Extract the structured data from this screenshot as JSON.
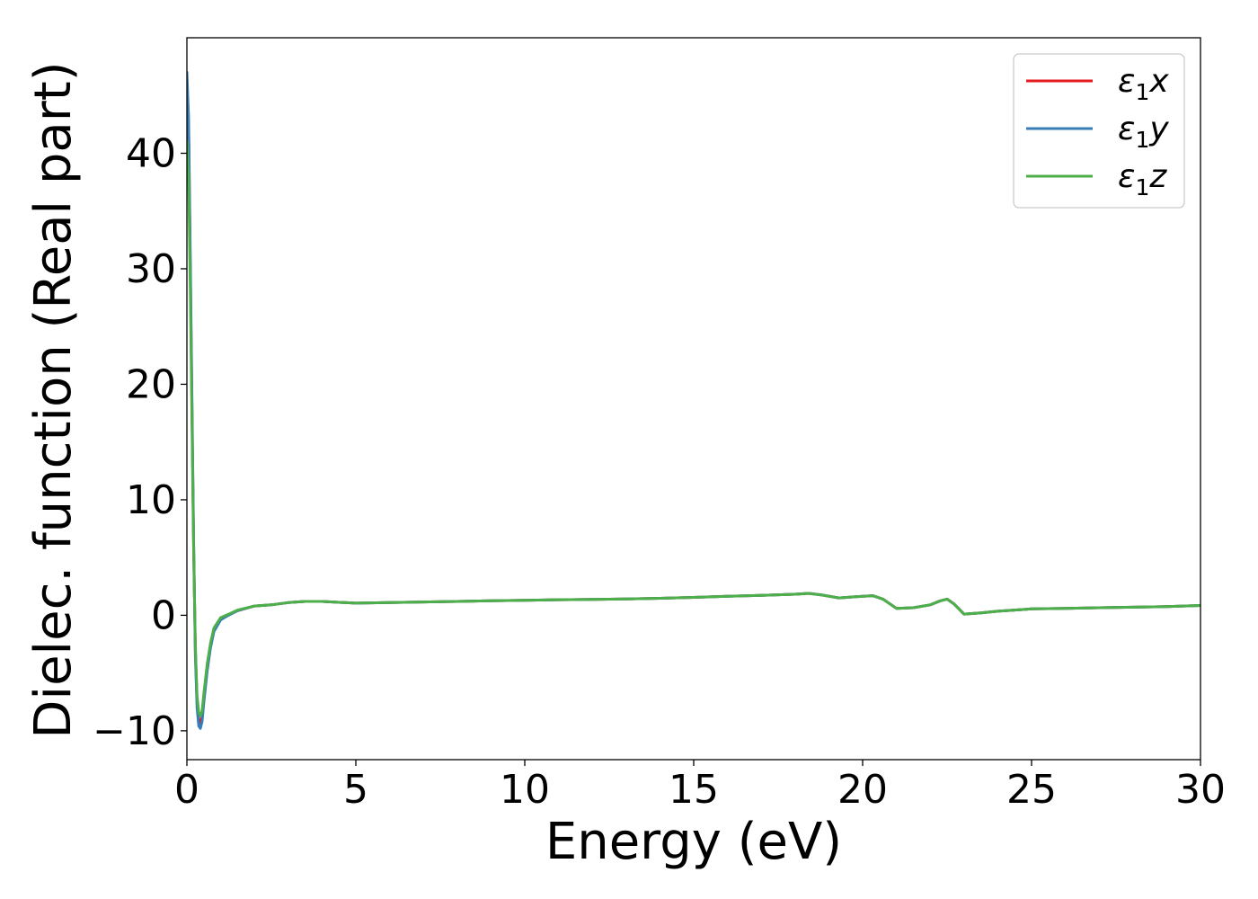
{
  "chart_data": {
    "type": "line",
    "xlabel": "Energy (eV)",
    "ylabel": "Dielec. function (Real part)",
    "xlim": [
      0,
      30
    ],
    "ylim": [
      -12.5,
      50
    ],
    "xticks": [
      0,
      5,
      10,
      15,
      20,
      25,
      30
    ],
    "xtick_labels": [
      "0",
      "5",
      "10",
      "15",
      "20",
      "25",
      "30"
    ],
    "yticks": [
      -10,
      0,
      10,
      20,
      30,
      40
    ],
    "ytick_labels": [
      "−10",
      "0",
      "10",
      "20",
      "30",
      "40"
    ],
    "grid": false,
    "legend_position": "top-right",
    "series": [
      {
        "name": "ε₁x",
        "legend_base": "ε",
        "legend_sub": "1",
        "legend_var": "x",
        "color": "#e41a1c",
        "x": [
          0,
          0.05,
          0.1,
          0.15,
          0.2,
          0.25,
          0.3,
          0.35,
          0.4,
          0.45,
          0.5,
          0.6,
          0.7,
          0.8,
          1.0,
          1.2,
          1.5,
          2.0,
          2.5,
          3.0,
          3.5,
          4.0,
          5.0,
          6.0,
          7.0,
          8.0,
          9.0,
          10.0,
          11.0,
          12.0,
          13.0,
          14.0,
          15.0,
          16.0,
          17.0,
          18.0,
          18.4,
          18.8,
          19.3,
          19.8,
          20.3,
          20.6,
          21.0,
          21.5,
          22.0,
          22.3,
          22.5,
          22.7,
          23.0,
          23.5,
          24.0,
          25.0,
          26.0,
          27.0,
          28.0,
          29.0,
          30.0
        ],
        "y": [
          46.0,
          42.0,
          30.0,
          18.0,
          6.0,
          -3.0,
          -7.5,
          -9.0,
          -9.3,
          -8.8,
          -7.2,
          -4.5,
          -2.6,
          -1.2,
          -0.3,
          0.0,
          0.4,
          0.8,
          0.9,
          1.1,
          1.2,
          1.2,
          1.05,
          1.1,
          1.15,
          1.2,
          1.25,
          1.3,
          1.35,
          1.38,
          1.42,
          1.47,
          1.55,
          1.65,
          1.72,
          1.82,
          1.9,
          1.75,
          1.5,
          1.6,
          1.7,
          1.4,
          0.6,
          0.65,
          0.9,
          1.25,
          1.4,
          1.0,
          0.1,
          0.2,
          0.35,
          0.55,
          0.6,
          0.65,
          0.7,
          0.75,
          0.85
        ]
      },
      {
        "name": "ε₁y",
        "legend_base": "ε",
        "legend_sub": "1",
        "legend_var": "y",
        "color": "#377eb8",
        "x": [
          0,
          0.05,
          0.1,
          0.15,
          0.2,
          0.25,
          0.3,
          0.35,
          0.4,
          0.45,
          0.5,
          0.6,
          0.7,
          0.8,
          1.0,
          1.2,
          1.5,
          2.0,
          2.5,
          3.0,
          3.5,
          4.0,
          5.0,
          6.0,
          7.0,
          8.0,
          9.0,
          10.0,
          11.0,
          12.0,
          13.0,
          14.0,
          15.0,
          16.0,
          17.0,
          18.0,
          18.4,
          18.8,
          19.3,
          19.8,
          20.3,
          20.6,
          21.0,
          21.5,
          22.0,
          22.3,
          22.5,
          22.7,
          23.0,
          23.5,
          24.0,
          25.0,
          26.0,
          27.0,
          28.0,
          29.0,
          30.0
        ],
        "y": [
          47.0,
          43.0,
          31.0,
          19.0,
          6.5,
          -3.5,
          -8.0,
          -9.6,
          -9.8,
          -9.2,
          -7.6,
          -4.8,
          -2.8,
          -1.4,
          -0.4,
          -0.05,
          0.4,
          0.8,
          0.9,
          1.1,
          1.2,
          1.2,
          1.05,
          1.1,
          1.15,
          1.2,
          1.25,
          1.3,
          1.35,
          1.38,
          1.42,
          1.47,
          1.55,
          1.65,
          1.72,
          1.82,
          1.9,
          1.75,
          1.5,
          1.6,
          1.7,
          1.4,
          0.6,
          0.65,
          0.9,
          1.25,
          1.4,
          1.0,
          0.1,
          0.2,
          0.35,
          0.55,
          0.6,
          0.65,
          0.7,
          0.75,
          0.85
        ]
      },
      {
        "name": "ε₁z",
        "legend_base": "ε",
        "legend_sub": "1",
        "legend_var": "z",
        "color": "#4daf4a",
        "x": [
          0,
          0.05,
          0.1,
          0.15,
          0.2,
          0.25,
          0.3,
          0.35,
          0.4,
          0.45,
          0.5,
          0.6,
          0.7,
          0.8,
          1.0,
          1.2,
          1.5,
          2.0,
          2.5,
          3.0,
          3.5,
          4.0,
          5.0,
          6.0,
          7.0,
          8.0,
          9.0,
          10.0,
          11.0,
          12.0,
          13.0,
          14.0,
          15.0,
          16.0,
          17.0,
          18.0,
          18.4,
          18.8,
          19.3,
          19.8,
          20.3,
          20.6,
          21.0,
          21.5,
          22.0,
          22.3,
          22.5,
          22.7,
          23.0,
          23.5,
          24.0,
          25.0,
          26.0,
          27.0,
          28.0,
          29.0,
          30.0
        ],
        "y": [
          41.0,
          38.0,
          28.0,
          17.0,
          5.5,
          -2.5,
          -7.0,
          -8.4,
          -8.7,
          -8.3,
          -6.8,
          -4.2,
          -2.4,
          -1.1,
          -0.2,
          0.05,
          0.45,
          0.8,
          0.9,
          1.1,
          1.2,
          1.2,
          1.05,
          1.1,
          1.15,
          1.2,
          1.25,
          1.3,
          1.35,
          1.38,
          1.42,
          1.47,
          1.55,
          1.65,
          1.72,
          1.82,
          1.9,
          1.75,
          1.5,
          1.6,
          1.7,
          1.4,
          0.6,
          0.65,
          0.9,
          1.25,
          1.4,
          1.0,
          0.1,
          0.2,
          0.35,
          0.55,
          0.6,
          0.65,
          0.7,
          0.75,
          0.85
        ]
      }
    ]
  }
}
